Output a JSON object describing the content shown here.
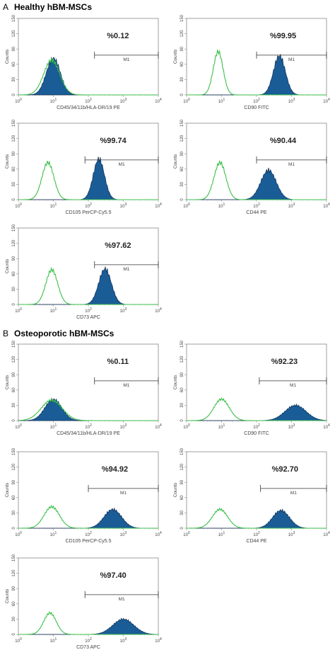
{
  "sections": [
    {
      "letter": "A",
      "title": "Healthy hBM-MSCs"
    },
    {
      "letter": "B",
      "title": "Osteoporotic hBM-MSCs"
    }
  ],
  "colors": {
    "control": "#3cbf4a",
    "sample": "#1a5c96",
    "sample_edge": "#0d2f55"
  },
  "chart_data": [
    {
      "type": "area",
      "title": "",
      "section": "A",
      "xlabel": "CD45/34/11b/HLA-DR/19 PE",
      "ylabel": "Counts",
      "x_scale": "log",
      "xlim": [
        1,
        10000
      ],
      "ylim": [
        0,
        150
      ],
      "xticks": [
        "10^0",
        "10^1",
        "10^2",
        "10^3",
        "10^4"
      ],
      "yticks": [
        "0",
        "30",
        "60",
        "90",
        "120",
        "150"
      ],
      "gate_label": "M1",
      "gate": [
        150,
        10000
      ],
      "percent_label": "%0.12",
      "series": [
        {
          "type": "control",
          "peak_x": 9,
          "peak_y": 68,
          "width": 0.23
        },
        {
          "type": "sample",
          "peak_x": 10,
          "peak_y": 72,
          "width": 0.2
        }
      ]
    },
    {
      "type": "area",
      "title": "",
      "section": "A",
      "xlabel": "CD90 FITC",
      "ylabel": "Counts",
      "x_scale": "log",
      "xlim": [
        1,
        10000
      ],
      "ylim": [
        0,
        150
      ],
      "xticks": [
        "10^0",
        "10^1",
        "10^2",
        "10^3",
        "10^4"
      ],
      "yticks": [
        "0",
        "30",
        "60",
        "90",
        "120",
        "150"
      ],
      "gate_label": "M1",
      "gate": [
        100,
        10000
      ],
      "percent_label": "%99.95",
      "series": [
        {
          "type": "control",
          "peak_x": 8,
          "peak_y": 85,
          "width": 0.14
        },
        {
          "type": "sample",
          "peak_x": 450,
          "peak_y": 77,
          "width": 0.17
        }
      ]
    },
    {
      "type": "area",
      "title": "",
      "section": "A",
      "xlabel": "CD105 PerCP-Cy5.5",
      "ylabel": "Counts",
      "x_scale": "log",
      "xlim": [
        1,
        10000
      ],
      "ylim": [
        0,
        150
      ],
      "xticks": [
        "10^0",
        "10^1",
        "10^2",
        "10^3",
        "10^4"
      ],
      "yticks": [
        "0",
        "30",
        "60",
        "90",
        "120",
        "150"
      ],
      "gate_label": "M1",
      "gate": [
        80,
        10000
      ],
      "percent_label": "%99.74",
      "series": [
        {
          "type": "control",
          "peak_x": 7,
          "peak_y": 73,
          "width": 0.17
        },
        {
          "type": "sample",
          "peak_x": 200,
          "peak_y": 80,
          "width": 0.16
        }
      ]
    },
    {
      "type": "area",
      "title": "",
      "section": "A",
      "xlabel": "CD44 PE",
      "ylabel": "Counts",
      "x_scale": "log",
      "xlim": [
        1,
        10000
      ],
      "ylim": [
        0,
        150
      ],
      "xticks": [
        "10^0",
        "10^1",
        "10^2",
        "10^3",
        "10^4"
      ],
      "yticks": [
        "0",
        "30",
        "60",
        "90",
        "120",
        "150"
      ],
      "gate_label": "M1",
      "gate": [
        100,
        10000
      ],
      "percent_label": "%90.44",
      "series": [
        {
          "type": "control",
          "peak_x": 9,
          "peak_y": 73,
          "width": 0.17
        },
        {
          "type": "sample",
          "peak_x": 220,
          "peak_y": 58,
          "width": 0.22
        }
      ]
    },
    {
      "type": "area",
      "title": "",
      "section": "A",
      "xlabel": "CD73 APC",
      "ylabel": "Counts",
      "x_scale": "log",
      "xlim": [
        1,
        10000
      ],
      "ylim": [
        0,
        150
      ],
      "xticks": [
        "10^0",
        "10^1",
        "10^2",
        "10^3",
        "10^4"
      ],
      "yticks": [
        "0",
        "30",
        "60",
        "90",
        "120",
        "150"
      ],
      "gate_label": "M1",
      "gate": [
        150,
        10000
      ],
      "percent_label": "%97.62",
      "series": [
        {
          "type": "control",
          "peak_x": 9,
          "peak_y": 68,
          "width": 0.17
        },
        {
          "type": "sample",
          "peak_x": 300,
          "peak_y": 70,
          "width": 0.18
        }
      ]
    },
    {
      "type": "area",
      "title": "",
      "section": "B",
      "xlabel": "CD45/34/11b/HLA-DR/19 PE",
      "ylabel": "Counts",
      "x_scale": "log",
      "xlim": [
        1,
        10000
      ],
      "ylim": [
        0,
        150
      ],
      "xticks": [
        "10^0",
        "10^1",
        "10^2",
        "10^3",
        "10^4"
      ],
      "yticks": [
        "0",
        "30",
        "60",
        "90",
        "120",
        "150"
      ],
      "gate_label": "M1",
      "gate": [
        150,
        10000
      ],
      "percent_label": "%0.11",
      "series": [
        {
          "type": "control",
          "peak_x": 9,
          "peak_y": 40,
          "width": 0.3
        },
        {
          "type": "sample",
          "peak_x": 10,
          "peak_y": 42,
          "width": 0.24
        }
      ]
    },
    {
      "type": "area",
      "title": "",
      "section": "B",
      "xlabel": "CD90 FITC",
      "ylabel": "Counts",
      "x_scale": "log",
      "xlim": [
        1,
        10000
      ],
      "ylim": [
        0,
        150
      ],
      "xticks": [
        "10^0",
        "10^1",
        "10^2",
        "10^3",
        "10^4"
      ],
      "yticks": [
        "0",
        "30",
        "60",
        "90",
        "120",
        "150"
      ],
      "gate_label": "M1",
      "gate": [
        120,
        10000
      ],
      "percent_label": "%92.23",
      "series": [
        {
          "type": "control",
          "peak_x": 10,
          "peak_y": 42,
          "width": 0.22
        },
        {
          "type": "sample",
          "peak_x": 1300,
          "peak_y": 30,
          "width": 0.3
        }
      ]
    },
    {
      "type": "area",
      "title": "",
      "section": "B",
      "xlabel": "CD105 PerCP-Cy5.5",
      "ylabel": "Counts",
      "x_scale": "log",
      "xlim": [
        1,
        10000
      ],
      "ylim": [
        0,
        150
      ],
      "xticks": [
        "10^0",
        "10^1",
        "10^2",
        "10^3",
        "10^4"
      ],
      "yticks": [
        "0",
        "30",
        "60",
        "90",
        "120",
        "150"
      ],
      "gate_label": "M1",
      "gate": [
        100,
        10000
      ],
      "percent_label": "%94.92",
      "series": [
        {
          "type": "control",
          "peak_x": 9,
          "peak_y": 42,
          "width": 0.22
        },
        {
          "type": "sample",
          "peak_x": 500,
          "peak_y": 37,
          "width": 0.25
        }
      ]
    },
    {
      "type": "area",
      "title": "",
      "section": "B",
      "xlabel": "CD44 PE",
      "ylabel": "Counts",
      "x_scale": "log",
      "xlim": [
        1,
        10000
      ],
      "ylim": [
        0,
        150
      ],
      "xticks": [
        "10^0",
        "10^1",
        "10^2",
        "10^3",
        "10^4"
      ],
      "yticks": [
        "0",
        "30",
        "60",
        "90",
        "120",
        "150"
      ],
      "gate_label": "M1",
      "gate": [
        130,
        10000
      ],
      "percent_label": "%92.70",
      "series": [
        {
          "type": "control",
          "peak_x": 9,
          "peak_y": 37,
          "width": 0.22
        },
        {
          "type": "sample",
          "peak_x": 500,
          "peak_y": 35,
          "width": 0.24
        }
      ]
    },
    {
      "type": "area",
      "title": "",
      "section": "B",
      "xlabel": "CD73 APC",
      "ylabel": "Counts",
      "x_scale": "log",
      "xlim": [
        1,
        10000
      ],
      "ylim": [
        0,
        150
      ],
      "xticks": [
        "10^0",
        "10^1",
        "10^2",
        "10^3",
        "10^4"
      ],
      "yticks": [
        "0",
        "30",
        "60",
        "90",
        "120",
        "150"
      ],
      "gate_label": "M1",
      "gate": [
        80,
        10000
      ],
      "percent_label": "%97.40",
      "series": [
        {
          "type": "control",
          "peak_x": 8,
          "peak_y": 42,
          "width": 0.18
        },
        {
          "type": "sample",
          "peak_x": 1000,
          "peak_y": 30,
          "width": 0.3
        }
      ]
    }
  ]
}
